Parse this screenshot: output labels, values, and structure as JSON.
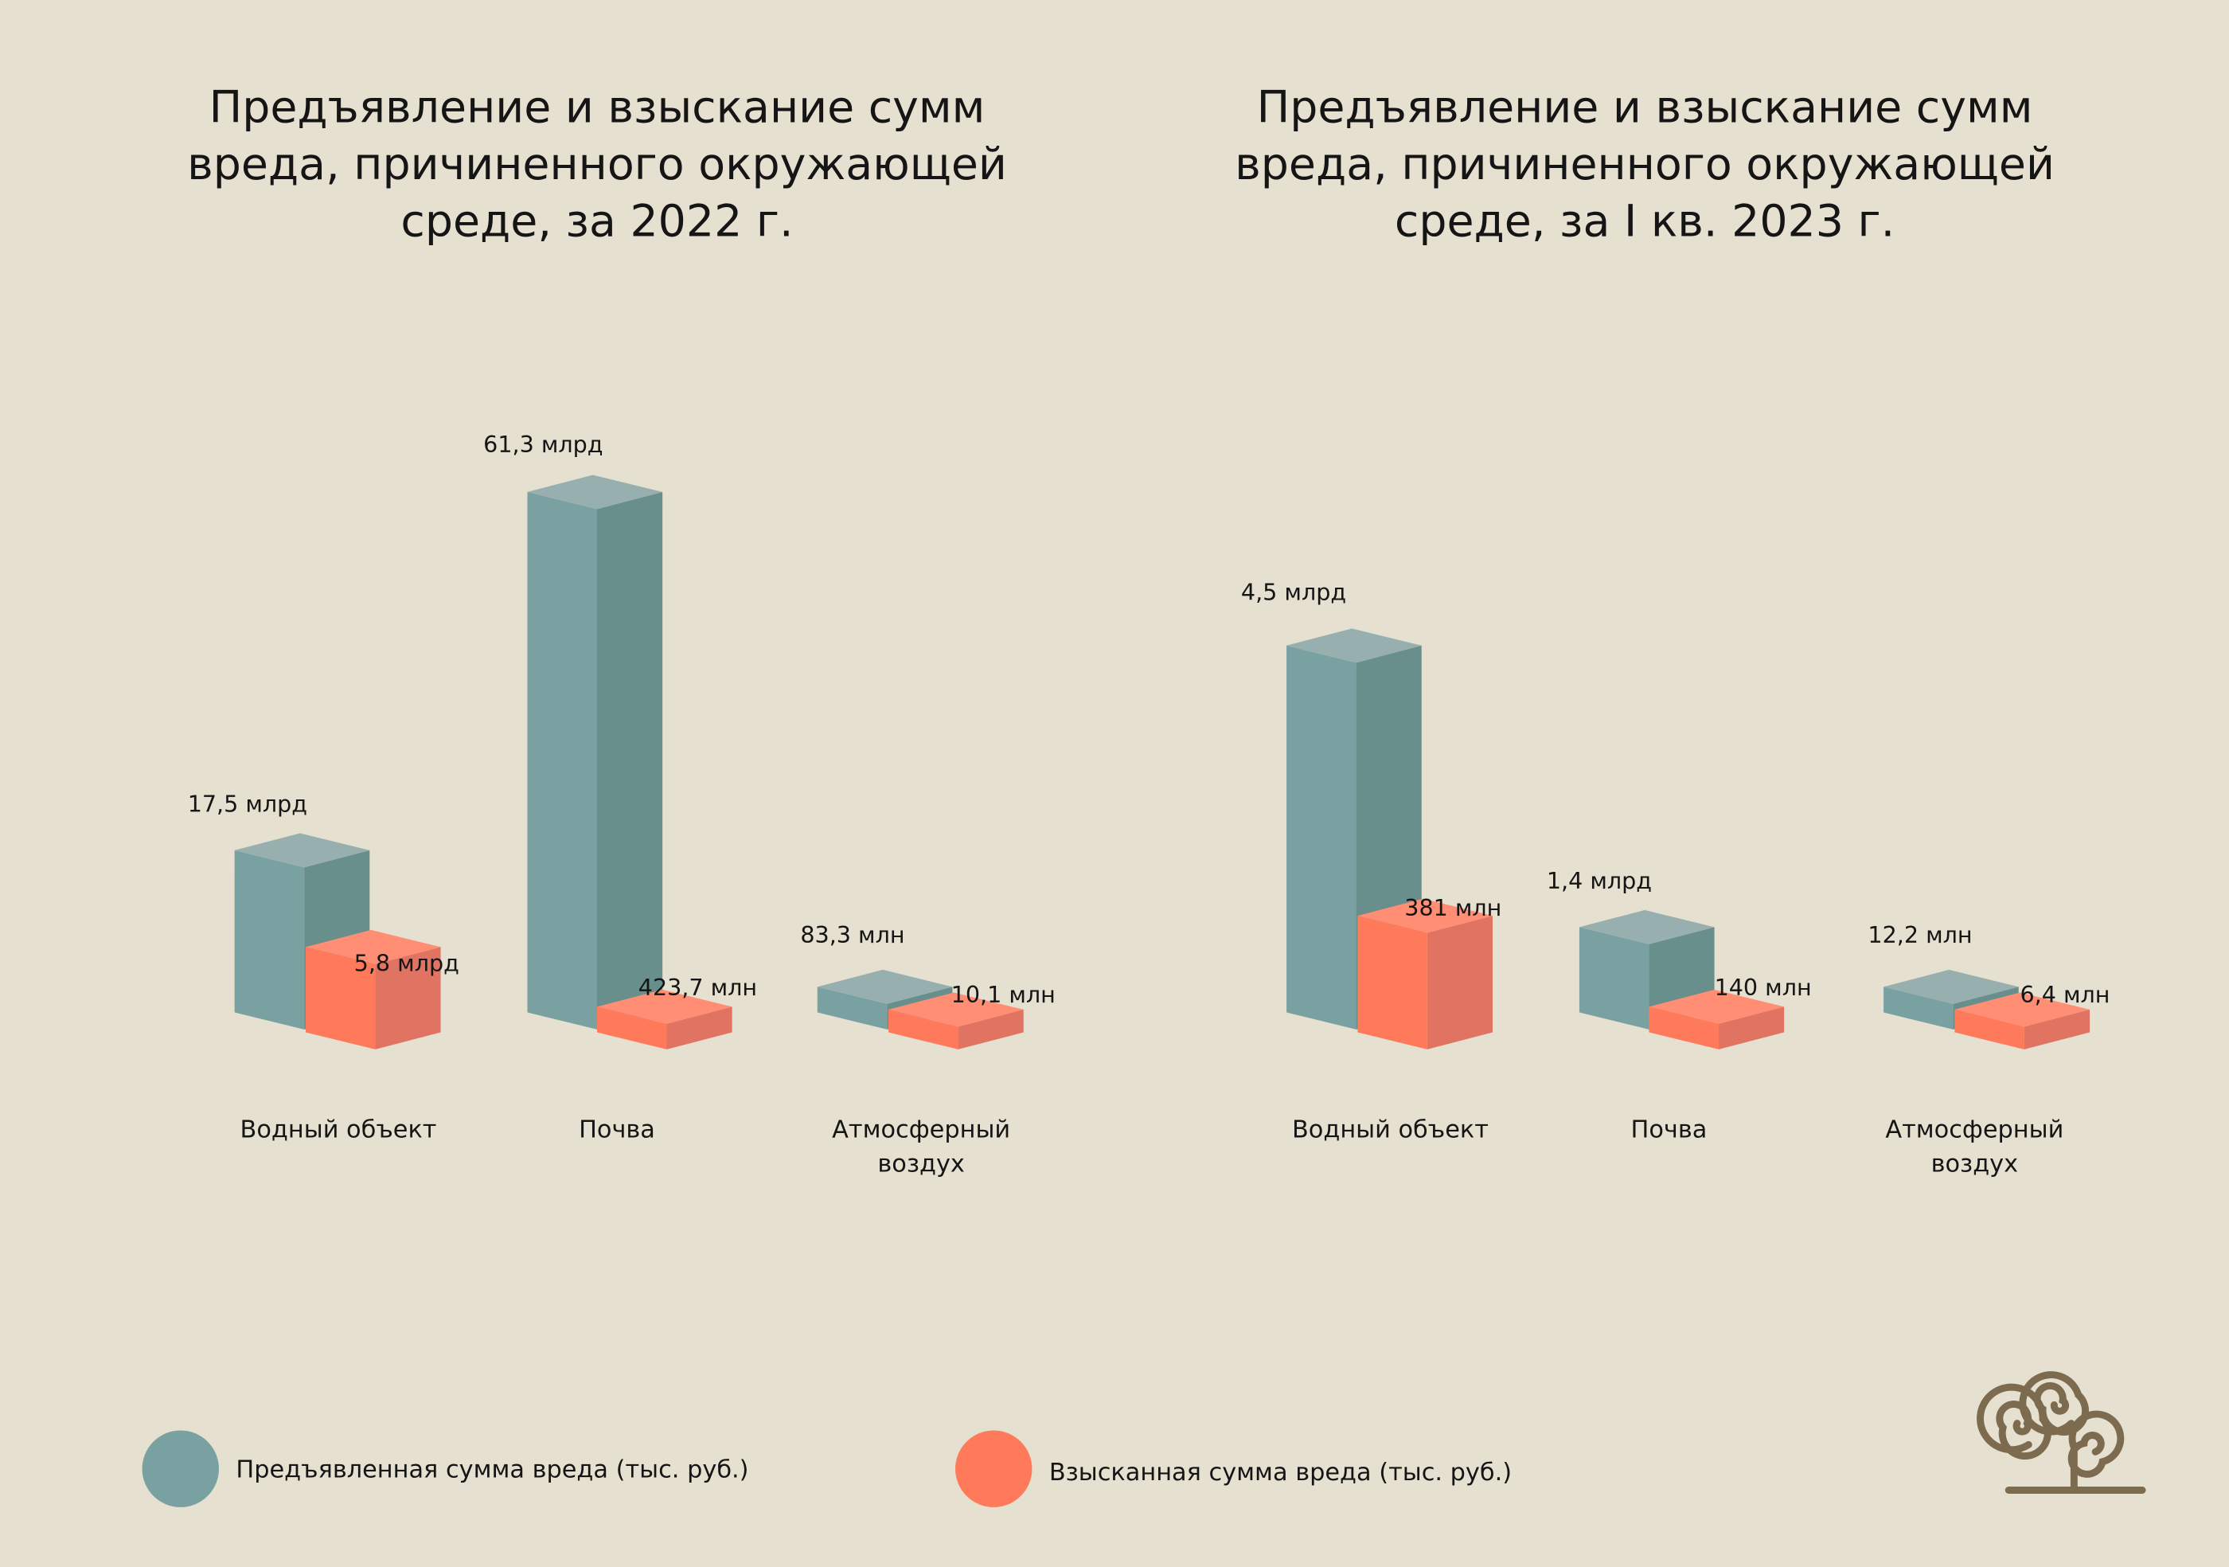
{
  "colors": {
    "background": "#e5e0cf",
    "claimed": "#7aa1a2",
    "claimed_side": "#688f8c",
    "claimed_top": "#97b0af",
    "recovered": "#ff7a5a",
    "recovered_side": "#e07362",
    "recovered_top": "#ff8e74",
    "logo": "#7d6b4f"
  },
  "chart_data": [
    {
      "type": "bar",
      "title": [
        "Предъявление и взыскание сумм",
        "вреда, причиненного окружающей",
        "среде, за 2022 г."
      ],
      "categories": [
        [
          "Водный объект"
        ],
        [
          "Почва"
        ],
        [
          "Атмосферный",
          "воздух"
        ]
      ],
      "series": [
        {
          "name": "Предъявленная сумма вреда (тыс. руб.)",
          "values_rub": [
            17500000000,
            61300000000,
            83300000
          ],
          "labels": [
            "17,5 млрд",
            "61,3 млрд",
            "83,3 млн"
          ]
        },
        {
          "name": "Взысканная сумма вреда (тыс. руб.)",
          "values_rub": [
            5800000000,
            423700000,
            10100000
          ],
          "labels": [
            "5,8 млрд",
            "423,7 млн",
            "10,1 млн"
          ]
        }
      ],
      "style": "3d-box"
    },
    {
      "type": "bar",
      "title": [
        "Предъявление и взыскание сумм",
        "вреда, причиненного окружающей",
        "среде, за I кв. 2023 г."
      ],
      "categories": [
        [
          "Водный объект"
        ],
        [
          "Почва"
        ],
        [
          "Атмосферный",
          "воздух"
        ]
      ],
      "series": [
        {
          "name": "Предъявленная сумма вреда (тыс. руб.)",
          "values_rub": [
            4500000000,
            1400000000,
            12200000
          ],
          "labels": [
            "4,5 млрд",
            "1,4 млрд",
            "12,2 млн"
          ]
        },
        {
          "name": "Взысканная сумма вреда (тыс. руб.)",
          "values_rub": [
            381000000,
            140000000,
            6400000
          ],
          "labels": [
            "381 млн",
            "140 млн",
            "6,4 млн"
          ]
        }
      ],
      "style": "3d-box"
    }
  ],
  "legend": {
    "position": "bottom-left",
    "items": [
      "Предъявленная сумма вреда (тыс. руб.)",
      "Взысканная сумма вреда (тыс. руб.)"
    ]
  },
  "logo": {
    "icon": "spiral-tree-logo"
  }
}
